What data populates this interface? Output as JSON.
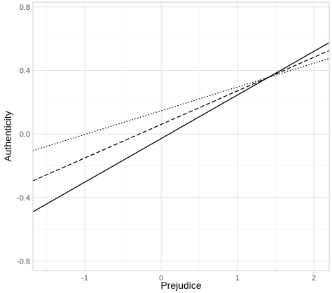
{
  "chart_data": {
    "type": "line",
    "title": "",
    "xlabel": "Prejudice",
    "ylabel": "Authenticity",
    "xlim": [
      -1.68,
      2.2
    ],
    "ylim": [
      -0.86,
      0.83
    ],
    "x_ticks": [
      -1,
      0,
      1,
      2
    ],
    "x_tick_labels": [
      "-1",
      "0",
      "1",
      "2"
    ],
    "y_ticks": [
      -0.8,
      -0.4,
      0.0,
      0.4,
      0.8
    ],
    "y_tick_labels": [
      "-0.8",
      "-0.4",
      "0.0",
      "0.4",
      "0.8"
    ],
    "grid": true,
    "legend": "none",
    "series": [
      {
        "style": "solid",
        "x": [
          -1.68,
          2.2
        ],
        "y": [
          -0.49,
          0.575
        ]
      },
      {
        "style": "dashed",
        "x": [
          -1.68,
          2.2
        ],
        "y": [
          -0.295,
          0.525
        ]
      },
      {
        "style": "dotted",
        "x": [
          -1.68,
          2.2
        ],
        "y": [
          -0.105,
          0.475
        ]
      }
    ]
  }
}
